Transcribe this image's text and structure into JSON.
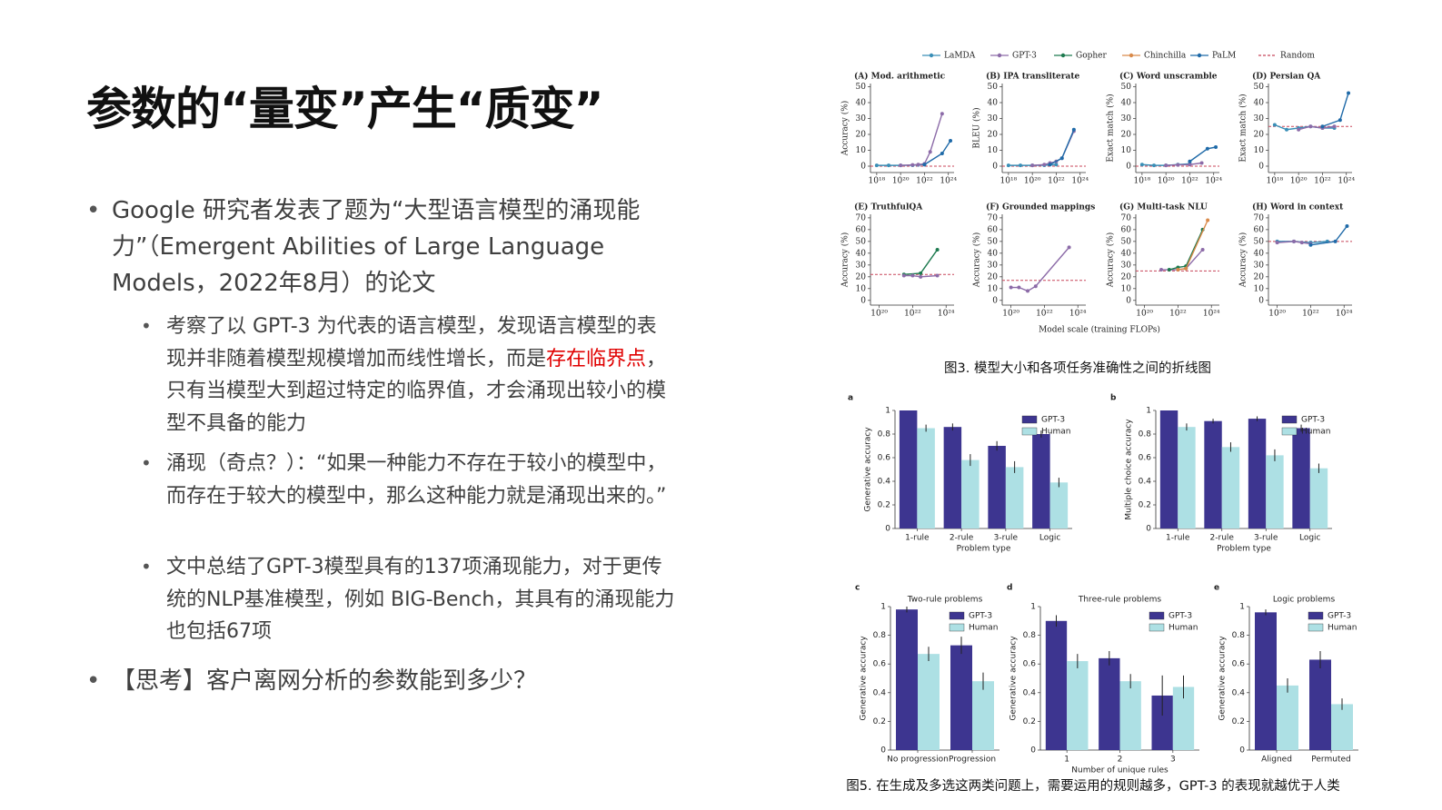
{
  "slide": {
    "title": "参数的“量变”产生“质变”",
    "bullets": [
      {
        "text": "Google 研究者发表了题为“大型语言模型的涌现能力”（Emergent Abilities of Large Language Models，2022年8月）的论文",
        "sub": [
          {
            "parts": [
              "考察了以 GPT-3 为代表的语言模型，发现语言模型的表现并非随着模型规模增加而线性增长，而是",
              "存在临界点",
              "，只有当模型大到超过特定的临界值，才会涌现出较小的模型不具备的能力"
            ]
          },
          {
            "text": "涌现（奇点？）：“如果一种能力不存在于较小的模型中，而存在于较大的模型中，那么这种能力就是涌现出来的。”"
          },
          {
            "text": "文中总结了GPT-3模型具有的137项涌现能力，对于更传统的NLP基准模型，例如 BIG-Bench，其具有的涌现能力也包括67项"
          }
        ]
      },
      {
        "text": "【思考】客户离网分析的参数能到多少？"
      }
    ]
  },
  "figure3": {
    "caption": "图3. 模型大小和各项任务准确性之间的折线图",
    "xlabel": "Model scale (training FLOPs)",
    "legend": [
      {
        "name": "LaMDA",
        "color": "#3a8fb7"
      },
      {
        "name": "GPT-3",
        "color": "#8c6ba8"
      },
      {
        "name": "Gopher",
        "color": "#1d7a4f"
      },
      {
        "name": "Chinchilla",
        "color": "#d98a4a"
      },
      {
        "name": "PaLM",
        "color": "#1f6aa8"
      },
      {
        "name": "Random",
        "color": "#c8465a"
      }
    ],
    "panels": [
      {
        "type": "line",
        "title": "(A) Mod. arithmetic",
        "ylabel": "Accuracy (%)",
        "xscale": "log",
        "xlim": [
          3e+17,
          3e+24
        ],
        "xticks": [
          {
            "value": 1e+18,
            "label": "10¹⁸"
          },
          {
            "value": 1e+20,
            "label": "10²⁰"
          },
          {
            "value": 1e+22,
            "label": "10²²"
          },
          {
            "value": 1e+24,
            "label": "10²⁴"
          }
        ],
        "ylim": [
          -4,
          52
        ],
        "yticks": [
          0,
          10,
          20,
          30,
          40,
          50
        ],
        "random": 0,
        "series": [
          {
            "name": "LaMDA",
            "x": [
              1e+18,
              1e+19,
              1e+20,
              1e+21,
              3e+21,
              1e+22
            ],
            "values": [
              0.5,
              0.5,
              0.5,
              0.6,
              0.8,
              1
            ]
          },
          {
            "name": "GPT-3",
            "x": [
              1e+20,
              1e+21,
              3e+21,
              1e+22,
              3e+22,
              3e+23
            ],
            "values": [
              0.5,
              0.8,
              1,
              1.5,
              9,
              33
            ]
          },
          {
            "name": "PaLM",
            "x": [
              1e+22,
              3e+23,
              1.5e+24
            ],
            "values": [
              1,
              8,
              16
            ]
          }
        ]
      },
      {
        "type": "line",
        "title": "(B) IPA transliterate",
        "ylabel": "BLEU (%)",
        "xscale": "log",
        "xlim": [
          3e+17,
          3e+24
        ],
        "xticks": [
          {
            "value": 1e+18,
            "label": "10¹⁸"
          },
          {
            "value": 1e+20,
            "label": "10²⁰"
          },
          {
            "value": 1e+22,
            "label": "10²²"
          },
          {
            "value": 1e+24,
            "label": "10²⁴"
          }
        ],
        "ylim": [
          -4,
          52
        ],
        "yticks": [
          0,
          10,
          20,
          30,
          40,
          50
        ],
        "random": 0,
        "series": [
          {
            "name": "LaMDA",
            "x": [
              1e+18,
              1e+19,
              1e+20,
              1e+21,
              1e+22
            ],
            "values": [
              0.5,
              0.5,
              0.5,
              0.6,
              1
            ]
          },
          {
            "name": "GPT-3",
            "x": [
              1e+20,
              1e+21,
              3e+21,
              1e+22,
              3e+22,
              3e+23
            ],
            "values": [
              0.5,
              1,
              2,
              3,
              5,
              22
            ]
          },
          {
            "name": "PaLM",
            "x": [
              3e+21,
              3e+22,
              3e+23
            ],
            "values": [
              1,
              5,
              23
            ]
          }
        ]
      },
      {
        "type": "line",
        "title": "(C) Word unscramble",
        "ylabel": "Exact match (%)",
        "xscale": "log",
        "xlim": [
          3e+17,
          3e+24
        ],
        "xticks": [
          {
            "value": 1e+18,
            "label": "10¹⁸"
          },
          {
            "value": 1e+20,
            "label": "10²⁰"
          },
          {
            "value": 1e+22,
            "label": "10²²"
          },
          {
            "value": 1e+24,
            "label": "10²⁴"
          }
        ],
        "ylim": [
          -4,
          52
        ],
        "yticks": [
          0,
          10,
          20,
          30,
          40,
          50
        ],
        "random": 0,
        "series": [
          {
            "name": "LaMDA",
            "x": [
              1e+18,
              1e+19,
              1e+20,
              1e+21,
              1e+22
            ],
            "values": [
              1,
              0.5,
              0.5,
              1,
              1.5
            ]
          },
          {
            "name": "GPT-3",
            "x": [
              1e+20,
              1e+21,
              1e+22,
              1e+23
            ],
            "values": [
              0.5,
              0.8,
              1,
              2
            ]
          },
          {
            "name": "PaLM",
            "x": [
              1e+22,
              3e+23,
              1.5e+24
            ],
            "values": [
              3,
              11,
              12
            ]
          }
        ]
      },
      {
        "type": "line",
        "title": "(D) Persian QA",
        "ylabel": "Exact match (%)",
        "xscale": "log",
        "xlim": [
          3e+17,
          3e+24
        ],
        "xticks": [
          {
            "value": 1e+18,
            "label": "10¹⁸"
          },
          {
            "value": 1e+20,
            "label": "10²⁰"
          },
          {
            "value": 1e+22,
            "label": "10²²"
          },
          {
            "value": 1e+24,
            "label": "10²⁴"
          }
        ],
        "ylim": [
          -4,
          52
        ],
        "yticks": [
          0,
          10,
          20,
          30,
          40,
          50
        ],
        "random": 25,
        "series": [
          {
            "name": "LaMDA",
            "x": [
              1e+18,
              1e+19,
              1e+20,
              1e+21,
              1e+22,
              1e+23
            ],
            "values": [
              26,
              23,
              24,
              25,
              24,
              24
            ]
          },
          {
            "name": "GPT-3",
            "x": [
              1e+20,
              1e+21,
              1e+22,
              1e+23
            ],
            "values": [
              23,
              25,
              24,
              25
            ]
          },
          {
            "name": "PaLM",
            "x": [
              1e+22,
              3e+23,
              1.5e+24
            ],
            "values": [
              25,
              29,
              46
            ]
          }
        ]
      },
      {
        "type": "line",
        "title": "(E) TruthfulQA",
        "ylabel": "Accuracy (%)",
        "xscale": "log",
        "xlim": [
          3e+19,
          3e+24
        ],
        "xticks": [
          {
            "value": 1e+20,
            "label": "10²⁰"
          },
          {
            "value": 1e+22,
            "label": "10²²"
          },
          {
            "value": 1e+24,
            "label": "10²⁴"
          }
        ],
        "ylim": [
          -4,
          73
        ],
        "yticks": [
          0,
          10,
          20,
          30,
          40,
          50,
          60,
          70
        ],
        "random": 22,
        "series": [
          {
            "name": "Gopher",
            "x": [
              3e+21,
              3e+22,
              3e+23
            ],
            "values": [
              22,
              23,
              43
            ]
          },
          {
            "name": "GPT-3",
            "x": [
              3e+21,
              1e+22,
              3e+22,
              3e+23
            ],
            "values": [
              21,
              21,
              20,
              21
            ]
          }
        ]
      },
      {
        "type": "line",
        "title": "(F) Grounded mappings",
        "ylabel": "Accuracy (%)",
        "xscale": "log",
        "xlim": [
          3e+19,
          3e+24
        ],
        "xticks": [
          {
            "value": 1e+20,
            "label": "10²⁰"
          },
          {
            "value": 1e+22,
            "label": "10²²"
          },
          {
            "value": 1e+24,
            "label": "10²⁴"
          }
        ],
        "ylim": [
          -4,
          73
        ],
        "yticks": [
          0,
          10,
          20,
          30,
          40,
          50,
          60,
          70
        ],
        "random": 17,
        "series": [
          {
            "name": "GPT-3",
            "x": [
              1e+20,
              3e+20,
              1e+21,
              3e+21,
              3e+23
            ],
            "values": [
              11,
              11,
              8,
              12,
              45
            ]
          }
        ]
      },
      {
        "type": "line",
        "title": "(G) Multi-task NLU",
        "ylabel": "Accuracy (%)",
        "xscale": "log",
        "xlim": [
          3e+19,
          3e+24
        ],
        "xticks": [
          {
            "value": 1e+20,
            "label": "10²⁰"
          },
          {
            "value": 1e+22,
            "label": "10²²"
          },
          {
            "value": 1e+24,
            "label": "10²⁴"
          }
        ],
        "ylim": [
          -4,
          73
        ],
        "yticks": [
          0,
          10,
          20,
          30,
          40,
          50,
          60,
          70
        ],
        "random": 25,
        "series": [
          {
            "name": "GPT-3",
            "x": [
              1e+21,
              1e+22,
              3e+22,
              3e+23
            ],
            "values": [
              26,
              26,
              27,
              43
            ]
          },
          {
            "name": "Gopher",
            "x": [
              3e+21,
              1e+22,
              3e+22,
              3e+23
            ],
            "values": [
              26,
              28,
              29,
              60
            ]
          },
          {
            "name": "Chinchilla",
            "x": [
              1e+22,
              3e+22,
              6e+23
            ],
            "values": [
              26,
              27,
              68
            ]
          }
        ]
      },
      {
        "type": "line",
        "title": "(H) Word in context",
        "ylabel": "Accuracy (%)",
        "xscale": "log",
        "xlim": [
          3e+19,
          3e+24
        ],
        "xticks": [
          {
            "value": 1e+20,
            "label": "10²⁰"
          },
          {
            "value": 1e+22,
            "label": "10²²"
          },
          {
            "value": 1e+24,
            "label": "10²⁴"
          }
        ],
        "ylim": [
          -4,
          73
        ],
        "yticks": [
          0,
          10,
          20,
          30,
          40,
          50,
          60,
          70
        ],
        "random": 50,
        "series": [
          {
            "name": "LaMDA",
            "x": [
              1e+20,
              1e+21,
              1e+22,
              1e+23
            ],
            "values": [
              50,
              50,
              49,
              50
            ]
          },
          {
            "name": "GPT-3",
            "x": [
              1e+20,
              1e+21,
              3e+21,
              1e+22
            ],
            "values": [
              49,
              50,
              49,
              48
            ]
          },
          {
            "name": "PaLM",
            "x": [
              1e+22,
              3e+23,
              1.5e+24
            ],
            "values": [
              47,
              50,
              63
            ]
          }
        ]
      }
    ]
  },
  "figure5": {
    "caption": "图5. 在生成及多选这两类问题上，需要运用的规则越多，GPT-3 的表现就越优于人类",
    "panels": [
      {
        "type": "bar",
        "letter": "a",
        "ylabel": "Generative accuracy",
        "xlabel": "Problem type",
        "categories": [
          "1-rule",
          "2-rule",
          "3-rule",
          "Logic"
        ],
        "ylim": [
          0,
          1
        ],
        "yticks": [
          0,
          0.2,
          0.4,
          0.6,
          0.8,
          1
        ],
        "legend_corner": "upper right",
        "series": [
          {
            "name": "GPT-3",
            "color": "#3d3590",
            "values": [
              1.0,
              0.86,
              0.7,
              0.8
            ],
            "errors": [
              0,
              0.03,
              0.04,
              0.03
            ]
          },
          {
            "name": "Human",
            "color": "#ade0e4",
            "values": [
              0.85,
              0.58,
              0.52,
              0.39
            ],
            "errors": [
              0.03,
              0.05,
              0.05,
              0.04
            ]
          }
        ]
      },
      {
        "type": "bar",
        "letter": "b",
        "ylabel": "Multiple choice accuracy",
        "xlabel": "Problem type",
        "categories": [
          "1-rule",
          "2-rule",
          "3-rule",
          "Logic"
        ],
        "ylim": [
          0,
          1
        ],
        "yticks": [
          0,
          0.2,
          0.4,
          0.6,
          0.8,
          1
        ],
        "legend_corner": "upper right",
        "series": [
          {
            "name": "GPT-3",
            "color": "#3d3590",
            "values": [
              1.0,
              0.91,
              0.93,
              0.85
            ],
            "errors": [
              0,
              0.02,
              0.02,
              0.03
            ]
          },
          {
            "name": "Human",
            "color": "#ade0e4",
            "values": [
              0.86,
              0.69,
              0.62,
              0.51
            ],
            "errors": [
              0.03,
              0.04,
              0.05,
              0.04
            ]
          }
        ]
      },
      {
        "type": "bar",
        "letter": "c",
        "title": "Two-rule problems",
        "ylabel": "Generative accuracy",
        "categories": [
          "No progression",
          "Progression"
        ],
        "ylim": [
          0,
          1
        ],
        "yticks": [
          0,
          0.2,
          0.4,
          0.6,
          0.8,
          1
        ],
        "legend_corner": "upper right",
        "series": [
          {
            "name": "GPT-3",
            "color": "#3d3590",
            "values": [
              0.98,
              0.73
            ],
            "errors": [
              0.02,
              0.06
            ]
          },
          {
            "name": "Human",
            "color": "#ade0e4",
            "values": [
              0.67,
              0.48
            ],
            "errors": [
              0.05,
              0.06
            ]
          }
        ]
      },
      {
        "type": "bar",
        "letter": "d",
        "title": "Three-rule problems",
        "ylabel": "Generative accuracy",
        "xlabel": "Number of unique rules",
        "categories": [
          "1",
          "2",
          "3"
        ],
        "ylim": [
          0,
          1
        ],
        "yticks": [
          0,
          0.2,
          0.4,
          0.6,
          0.8,
          1
        ],
        "legend_corner": "upper right",
        "series": [
          {
            "name": "GPT-3",
            "color": "#3d3590",
            "values": [
              0.9,
              0.64,
              0.38
            ],
            "errors": [
              0.04,
              0.05,
              0.14
            ]
          },
          {
            "name": "Human",
            "color": "#ade0e4",
            "values": [
              0.62,
              0.48,
              0.44
            ],
            "errors": [
              0.05,
              0.05,
              0.08
            ]
          }
        ]
      },
      {
        "type": "bar",
        "letter": "e",
        "title": "Logic problems",
        "ylabel": "Generative accuracy",
        "categories": [
          "Aligned",
          "Permuted"
        ],
        "ylim": [
          0,
          1
        ],
        "yticks": [
          0,
          0.2,
          0.4,
          0.6,
          0.8,
          1
        ],
        "legend_corner": "upper right",
        "series": [
          {
            "name": "GPT-3",
            "color": "#3d3590",
            "values": [
              0.96,
              0.63
            ],
            "errors": [
              0.02,
              0.06
            ]
          },
          {
            "name": "Human",
            "color": "#ade0e4",
            "values": [
              0.45,
              0.32
            ],
            "errors": [
              0.05,
              0.04
            ]
          }
        ]
      }
    ]
  }
}
